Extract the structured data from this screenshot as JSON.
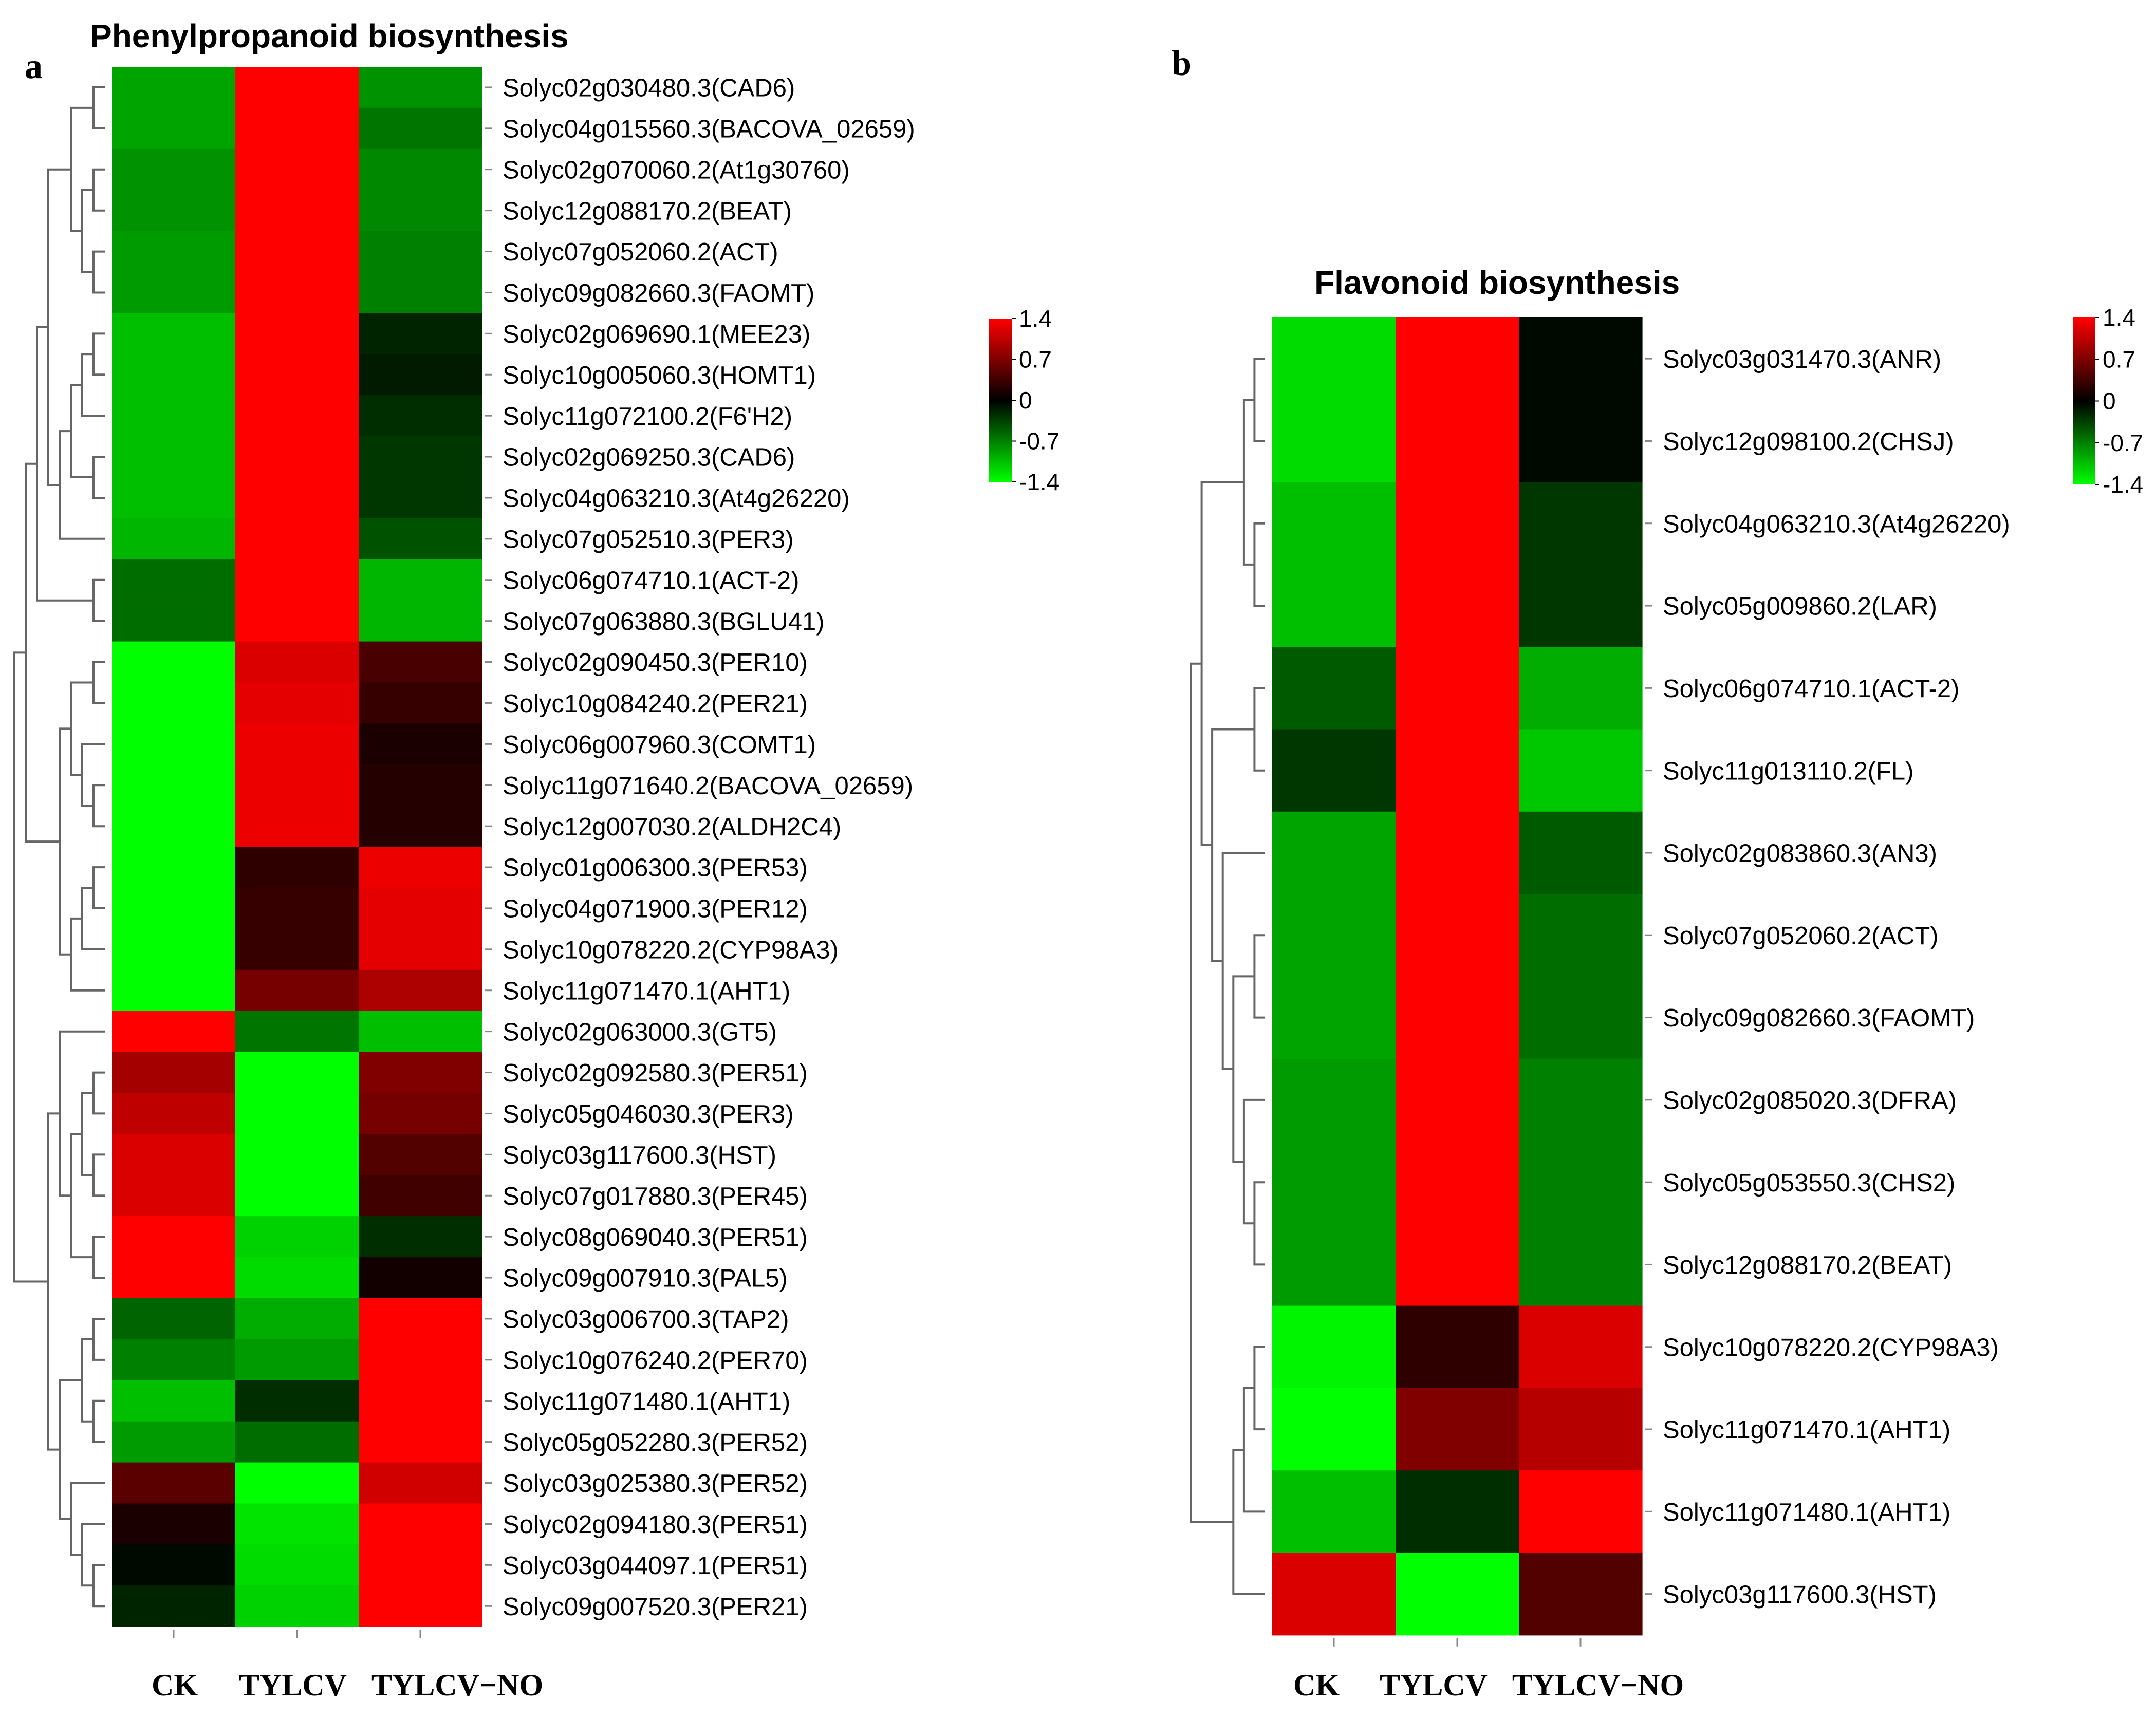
{
  "figure": {
    "panel_a_letter": "a",
    "panel_b_letter": "b"
  },
  "chart_data": [
    {
      "type": "heatmap",
      "panel": "a",
      "title": "Phenylpropanoid biosynthesis",
      "columns": [
        "CK",
        "TYLCV",
        "TYLCV−NO"
      ],
      "rows": [
        {
          "label": "Solyc02g030480.3(CAD6)",
          "values": [
            -0.9,
            1.4,
            -0.8
          ]
        },
        {
          "label": "Solyc04g015560.3(BACOVA_02659)",
          "values": [
            -0.9,
            1.4,
            -0.65
          ]
        },
        {
          "label": "Solyc02g070060.2(At1g30760)",
          "values": [
            -0.8,
            1.4,
            -0.75
          ]
        },
        {
          "label": "Solyc12g088170.2(BEAT)",
          "values": [
            -0.8,
            1.4,
            -0.75
          ]
        },
        {
          "label": "Solyc07g052060.2(ACT)",
          "values": [
            -0.85,
            1.4,
            -0.7
          ]
        },
        {
          "label": "Solyc09g082660.3(FAOMT)",
          "values": [
            -0.85,
            1.4,
            -0.7
          ]
        },
        {
          "label": "Solyc02g069690.1(MEE23)",
          "values": [
            -1.05,
            1.4,
            -0.2
          ]
        },
        {
          "label": "Solyc10g005060.3(HOMT1)",
          "values": [
            -1.05,
            1.4,
            -0.15
          ]
        },
        {
          "label": "Solyc11g072100.2(F6'H2)",
          "values": [
            -1.05,
            1.4,
            -0.25
          ]
        },
        {
          "label": "Solyc02g069250.3(CAD6)",
          "values": [
            -1.05,
            1.4,
            -0.3
          ]
        },
        {
          "label": "Solyc04g063210.3(At4g26220)",
          "values": [
            -1.05,
            1.4,
            -0.3
          ]
        },
        {
          "label": "Solyc07g052510.3(PER3)",
          "values": [
            -1.0,
            1.4,
            -0.45
          ]
        },
        {
          "label": "Solyc06g074710.1(ACT-2)",
          "values": [
            -0.6,
            1.4,
            -1.0
          ]
        },
        {
          "label": "Solyc07g063880.3(BGLU41)",
          "values": [
            -0.6,
            1.4,
            -1.0
          ]
        },
        {
          "label": "Solyc02g090450.3(PER10)",
          "values": [
            -1.4,
            1.2,
            0.4
          ]
        },
        {
          "label": "Solyc10g084240.2(PER21)",
          "values": [
            -1.4,
            1.25,
            0.3
          ]
        },
        {
          "label": "Solyc06g007960.3(COMT1)",
          "values": [
            -1.4,
            1.3,
            0.15
          ]
        },
        {
          "label": "Solyc11g071640.2(BACOVA_02659)",
          "values": [
            -1.4,
            1.3,
            0.2
          ]
        },
        {
          "label": "Solyc12g007030.2(ALDH2C4)",
          "values": [
            -1.4,
            1.3,
            0.2
          ]
        },
        {
          "label": "Solyc01g006300.3(PER53)",
          "values": [
            -1.4,
            0.25,
            1.3
          ]
        },
        {
          "label": "Solyc04g071900.3(PER12)",
          "values": [
            -1.4,
            0.3,
            1.25
          ]
        },
        {
          "label": "Solyc10g078220.2(CYP98A3)",
          "values": [
            -1.4,
            0.3,
            1.25
          ]
        },
        {
          "label": "Solyc11g071470.1(AHT1)",
          "values": [
            -1.4,
            0.65,
            0.95
          ]
        },
        {
          "label": "Solyc02g063000.3(GT5)",
          "values": [
            1.4,
            -0.65,
            -1.05
          ]
        },
        {
          "label": "Solyc02g092580.3(PER51)",
          "values": [
            0.9,
            -1.4,
            0.7
          ]
        },
        {
          "label": "Solyc05g046030.3(PER3)",
          "values": [
            1.05,
            -1.4,
            0.65
          ]
        },
        {
          "label": "Solyc03g117600.3(HST)",
          "values": [
            1.2,
            -1.4,
            0.45
          ]
        },
        {
          "label": "Solyc07g017880.3(PER45)",
          "values": [
            1.2,
            -1.4,
            0.35
          ]
        },
        {
          "label": "Solyc08g069040.3(PER51)",
          "values": [
            1.4,
            -1.15,
            -0.25
          ]
        },
        {
          "label": "Solyc09g007910.3(PAL5)",
          "values": [
            1.4,
            -1.2,
            0.1
          ]
        },
        {
          "label": "Solyc03g006700.3(TAP2)",
          "values": [
            -0.55,
            -0.95,
            1.4
          ]
        },
        {
          "label": "Solyc10g076240.2(PER70)",
          "values": [
            -0.7,
            -0.85,
            1.4
          ]
        },
        {
          "label": "Solyc11g071480.1(AHT1)",
          "values": [
            -1.05,
            -0.25,
            1.4
          ]
        },
        {
          "label": "Solyc05g052280.3(PER52)",
          "values": [
            -0.85,
            -0.6,
            1.4
          ]
        },
        {
          "label": "Solyc03g025380.3(PER52)",
          "values": [
            0.5,
            -1.4,
            1.15
          ]
        },
        {
          "label": "Solyc02g094180.3(PER51)",
          "values": [
            0.15,
            -1.25,
            1.4
          ]
        },
        {
          "label": "Solyc03g044097.1(PER51)",
          "values": [
            -0.05,
            -1.2,
            1.4
          ]
        },
        {
          "label": "Solyc09g007520.3(PER21)",
          "values": [
            -0.2,
            -1.15,
            1.4
          ]
        }
      ],
      "colorbar": {
        "min": -1.4,
        "max": 1.4,
        "ticks": [
          "1.4",
          "0.7",
          "0",
          "-0.7",
          "-1.4"
        ],
        "colors": [
          "#00ff00",
          "#000000",
          "#ff0000"
        ]
      }
    },
    {
      "type": "heatmap",
      "panel": "b",
      "title": "Flavonoid biosynthesis",
      "columns": [
        "CK",
        "TYLCV",
        "TYLCV−NO"
      ],
      "rows": [
        {
          "label": "Solyc03g031470.3(ANR)",
          "values": [
            -1.2,
            1.4,
            -0.05
          ]
        },
        {
          "label": "Solyc12g098100.2(CHSJ)",
          "values": [
            -1.2,
            1.4,
            -0.05
          ]
        },
        {
          "label": "Solyc04g063210.3(At4g26220)",
          "values": [
            -1.05,
            1.4,
            -0.3
          ]
        },
        {
          "label": "Solyc05g009860.2(LAR)",
          "values": [
            -1.05,
            1.4,
            -0.3
          ]
        },
        {
          "label": "Solyc06g074710.1(ACT-2)",
          "values": [
            -0.5,
            1.4,
            -0.95
          ]
        },
        {
          "label": "Solyc11g013110.2(FL)",
          "values": [
            -0.3,
            1.4,
            -1.1
          ]
        },
        {
          "label": "Solyc02g083860.3(AN3)",
          "values": [
            -0.9,
            1.4,
            -0.5
          ]
        },
        {
          "label": "Solyc07g052060.2(ACT)",
          "values": [
            -0.9,
            1.4,
            -0.6
          ]
        },
        {
          "label": "Solyc09g082660.3(FAOMT)",
          "values": [
            -0.9,
            1.4,
            -0.6
          ]
        },
        {
          "label": "Solyc02g085020.3(DFRA)",
          "values": [
            -0.85,
            1.4,
            -0.7
          ]
        },
        {
          "label": "Solyc05g053550.3(CHS2)",
          "values": [
            -0.85,
            1.4,
            -0.7
          ]
        },
        {
          "label": "Solyc12g088170.2(BEAT)",
          "values": [
            -0.85,
            1.4,
            -0.7
          ]
        },
        {
          "label": "Solyc10g078220.2(CYP98A3)",
          "values": [
            -1.35,
            0.25,
            1.2
          ]
        },
        {
          "label": "Solyc11g071470.1(AHT1)",
          "values": [
            -1.4,
            0.7,
            1.0
          ]
        },
        {
          "label": "Solyc11g071480.1(AHT1)",
          "values": [
            -1.05,
            -0.25,
            1.4
          ]
        },
        {
          "label": "Solyc03g117600.3(HST)",
          "values": [
            1.2,
            -1.4,
            0.45
          ]
        }
      ],
      "colorbar": {
        "min": -1.4,
        "max": 1.4,
        "ticks": [
          "1.4",
          "0.7",
          "0",
          "-0.7",
          "-1.4"
        ],
        "colors": [
          "#00ff00",
          "#000000",
          "#ff0000"
        ]
      }
    }
  ]
}
